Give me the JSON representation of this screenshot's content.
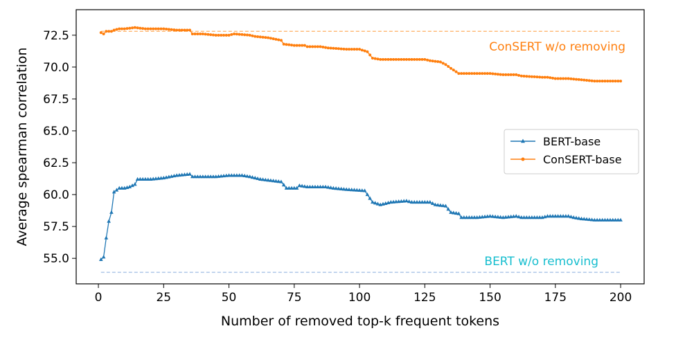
{
  "chart_data": {
    "type": "line",
    "title": "",
    "xlabel": "Number of removed top-k frequent tokens",
    "ylabel": "Average spearman correlation",
    "xlim": [
      -8.5,
      209
    ],
    "ylim": [
      53.0,
      74.5
    ],
    "xticks": [
      0,
      25,
      50,
      75,
      100,
      125,
      150,
      175,
      200
    ],
    "yticks": [
      55.0,
      57.5,
      60.0,
      62.5,
      65.0,
      67.5,
      70.0,
      72.5
    ],
    "xtick_labels": [
      "0",
      "25",
      "50",
      "75",
      "100",
      "125",
      "150",
      "175",
      "200"
    ],
    "ytick_labels": [
      "55.0",
      "57.5",
      "60.0",
      "62.5",
      "65.0",
      "67.5",
      "70.0",
      "72.5"
    ],
    "grid": false,
    "legend_position": "center-right",
    "series": [
      {
        "name": "BERT-base",
        "color": "#1f77b4",
        "marker": "triangle",
        "keypoints": [
          [
            1,
            54.9
          ],
          [
            2,
            55.1
          ],
          [
            3,
            56.6
          ],
          [
            4,
            57.9
          ],
          [
            5,
            58.6
          ],
          [
            6,
            60.2
          ],
          [
            8,
            60.5
          ],
          [
            10,
            60.5
          ],
          [
            12,
            60.6
          ],
          [
            14,
            60.8
          ],
          [
            15,
            61.2
          ],
          [
            20,
            61.2
          ],
          [
            25,
            61.3
          ],
          [
            30,
            61.5
          ],
          [
            35,
            61.6
          ],
          [
            36,
            61.4
          ],
          [
            45,
            61.4
          ],
          [
            50,
            61.5
          ],
          [
            55,
            61.5
          ],
          [
            58,
            61.4
          ],
          [
            62,
            61.2
          ],
          [
            66,
            61.1
          ],
          [
            70,
            61.0
          ],
          [
            72,
            60.5
          ],
          [
            76,
            60.5
          ],
          [
            77,
            60.7
          ],
          [
            80,
            60.6
          ],
          [
            87,
            60.6
          ],
          [
            90,
            60.5
          ],
          [
            95,
            60.4
          ],
          [
            102,
            60.3
          ],
          [
            103,
            60.0
          ],
          [
            105,
            59.4
          ],
          [
            108,
            59.2
          ],
          [
            112,
            59.4
          ],
          [
            118,
            59.5
          ],
          [
            120,
            59.4
          ],
          [
            127,
            59.4
          ],
          [
            129,
            59.2
          ],
          [
            133,
            59.1
          ],
          [
            135,
            58.6
          ],
          [
            138,
            58.5
          ],
          [
            139,
            58.2
          ],
          [
            145,
            58.2
          ],
          [
            150,
            58.3
          ],
          [
            155,
            58.2
          ],
          [
            160,
            58.3
          ],
          [
            162,
            58.2
          ],
          [
            170,
            58.2
          ],
          [
            172,
            58.3
          ],
          [
            180,
            58.3
          ],
          [
            182,
            58.2
          ],
          [
            185,
            58.1
          ],
          [
            190,
            58.0
          ],
          [
            195,
            58.0
          ],
          [
            200,
            58.0
          ]
        ]
      },
      {
        "name": "ConSERT-base",
        "color": "#ff7f0e",
        "marker": "dot",
        "keypoints": [
          [
            1,
            72.7
          ],
          [
            2,
            72.6
          ],
          [
            3,
            72.8
          ],
          [
            5,
            72.8
          ],
          [
            6,
            72.9
          ],
          [
            8,
            73.0
          ],
          [
            10,
            73.0
          ],
          [
            14,
            73.1
          ],
          [
            18,
            73.0
          ],
          [
            25,
            73.0
          ],
          [
            30,
            72.9
          ],
          [
            35,
            72.9
          ],
          [
            36,
            72.6
          ],
          [
            40,
            72.6
          ],
          [
            45,
            72.5
          ],
          [
            50,
            72.5
          ],
          [
            52,
            72.6
          ],
          [
            58,
            72.5
          ],
          [
            60,
            72.4
          ],
          [
            65,
            72.3
          ],
          [
            70,
            72.1
          ],
          [
            71,
            71.8
          ],
          [
            75,
            71.7
          ],
          [
            79,
            71.7
          ],
          [
            80,
            71.6
          ],
          [
            85,
            71.6
          ],
          [
            88,
            71.5
          ],
          [
            95,
            71.4
          ],
          [
            100,
            71.4
          ],
          [
            103,
            71.2
          ],
          [
            105,
            70.7
          ],
          [
            108,
            70.6
          ],
          [
            115,
            70.6
          ],
          [
            118,
            70.6
          ],
          [
            125,
            70.6
          ],
          [
            127,
            70.5
          ],
          [
            131,
            70.4
          ],
          [
            133,
            70.2
          ],
          [
            135,
            69.9
          ],
          [
            138,
            69.5
          ],
          [
            145,
            69.5
          ],
          [
            150,
            69.5
          ],
          [
            155,
            69.4
          ],
          [
            160,
            69.4
          ],
          [
            162,
            69.3
          ],
          [
            170,
            69.2
          ],
          [
            172,
            69.2
          ],
          [
            175,
            69.1
          ],
          [
            180,
            69.1
          ],
          [
            185,
            69.0
          ],
          [
            190,
            68.9
          ],
          [
            195,
            68.9
          ],
          [
            200,
            68.9
          ]
        ]
      }
    ],
    "reference_lines": [
      {
        "label": "ConSERT w/o removing",
        "y": 72.8,
        "x": [
          1,
          200
        ],
        "color": "#ffbb78",
        "text_color": "#ff7f0e"
      },
      {
        "label": "BERT w/o removing",
        "y": 53.9,
        "x": [
          1,
          200
        ],
        "color": "#aec7e8",
        "text_color": "#17becf"
      }
    ]
  }
}
